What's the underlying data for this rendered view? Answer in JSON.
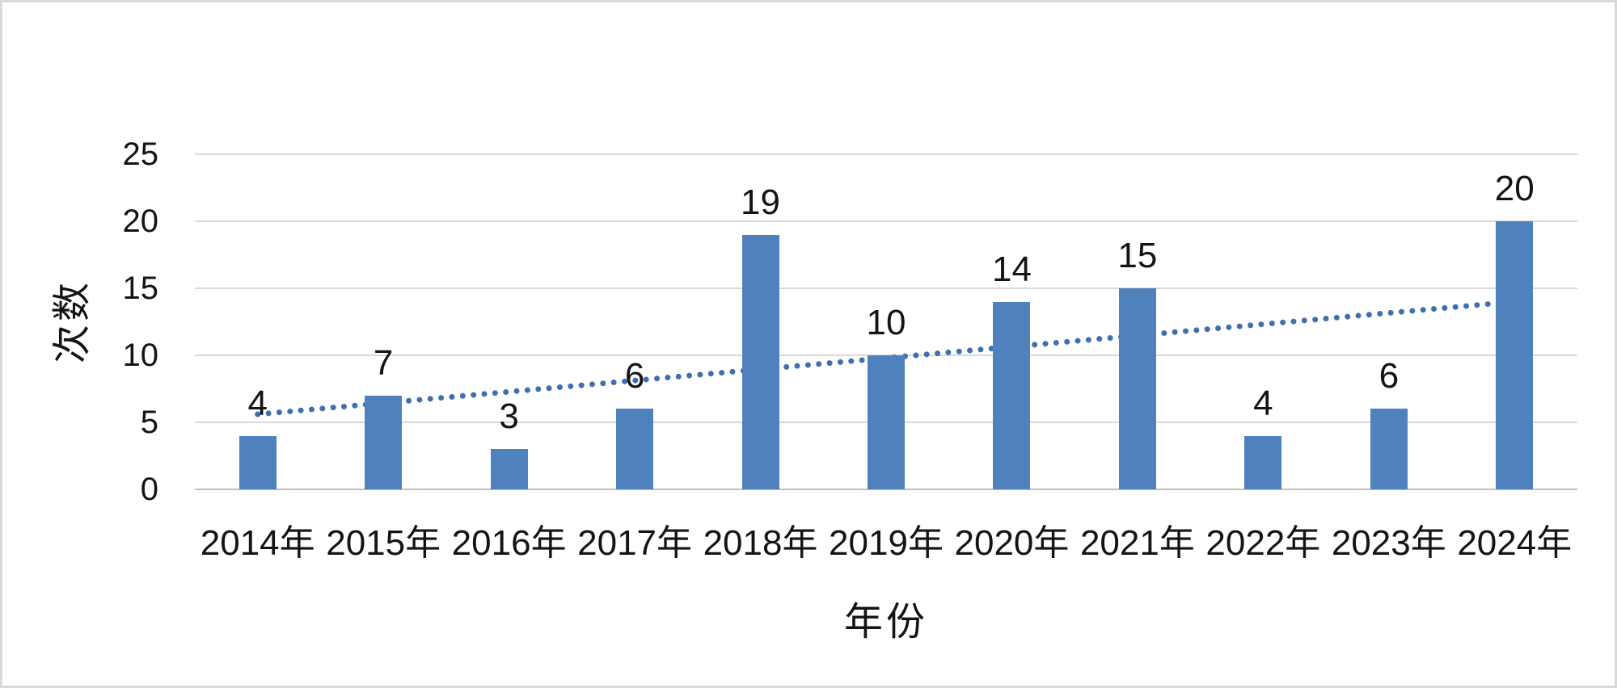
{
  "chart_data": {
    "type": "bar",
    "title": "",
    "categories": [
      "2014年",
      "2015年",
      "2016年",
      "2017年",
      "2018年",
      "2019年",
      "2020年",
      "2021年",
      "2022年",
      "2023年",
      "2024年"
    ],
    "values": [
      4,
      7,
      3,
      6,
      19,
      10,
      14,
      15,
      4,
      6,
      20
    ],
    "data_labels": [
      4,
      7,
      3,
      6,
      19,
      10,
      14,
      15,
      4,
      6,
      20
    ],
    "xlabel": "年份",
    "ylabel": "次数",
    "yticks": [
      0,
      5,
      10,
      15,
      20,
      25
    ],
    "ylim": [
      0,
      25
    ],
    "grid": "horizontal-on",
    "legend": "none",
    "trendline": {
      "type": "linear",
      "style": "dotted",
      "start_value": 5.6,
      "end_value": 14.0
    }
  },
  "colors": {
    "bar": "#4f81bd",
    "trendline": "#3f6fae",
    "gridline": "#d9d9d9",
    "axis_line": "#bfbfbf",
    "text": "#141414",
    "background": "#ffffff",
    "canvas_border": "#d9d9d9"
  }
}
